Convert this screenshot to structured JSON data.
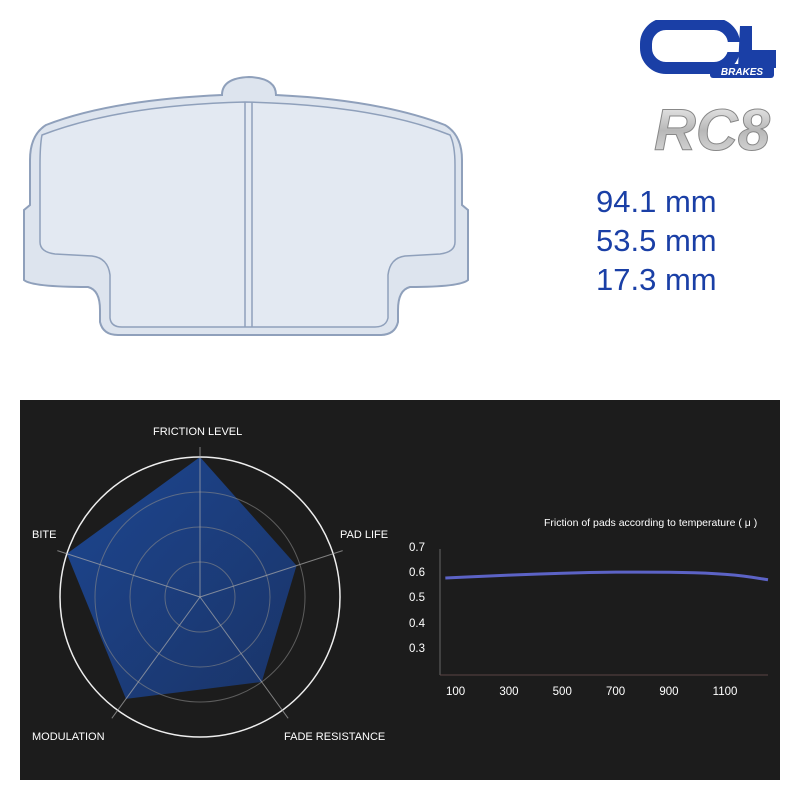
{
  "brand": {
    "logo_text": "CL",
    "logo_sub": "BRAKES",
    "model": "RC8",
    "brand_color": "#1a3fa6"
  },
  "dimensions": [
    "94.1 mm",
    "53.5 mm",
    "17.3 mm"
  ],
  "chart_data": [
    {
      "type": "radar",
      "axes": [
        "FRICTION LEVEL",
        "PAD LIFE",
        "FADE RESISTANCE",
        "MODULATION",
        "BITE"
      ],
      "values": [
        4,
        2.9,
        3.0,
        3.6,
        4
      ],
      "range": [
        0,
        4
      ],
      "fill_color": "#1d4690"
    },
    {
      "type": "line",
      "title": "Friction of pads according to temperature ( μ )",
      "x_ticks": [
        "100",
        "300",
        "500",
        "700",
        "900",
        "1100"
      ],
      "y_ticks": [
        "0.7",
        "0.6",
        "0.5",
        "0.4",
        "0.3"
      ],
      "xlim": [
        40,
        1270
      ],
      "ylim": [
        0.2,
        0.7
      ],
      "series": [
        {
          "x": [
            60,
            200,
            400,
            600,
            800,
            1000,
            1150,
            1270
          ],
          "y": [
            0.585,
            0.592,
            0.601,
            0.607,
            0.609,
            0.606,
            0.598,
            0.578
          ],
          "color": "#5c63c6"
        }
      ],
      "grid": false
    }
  ]
}
